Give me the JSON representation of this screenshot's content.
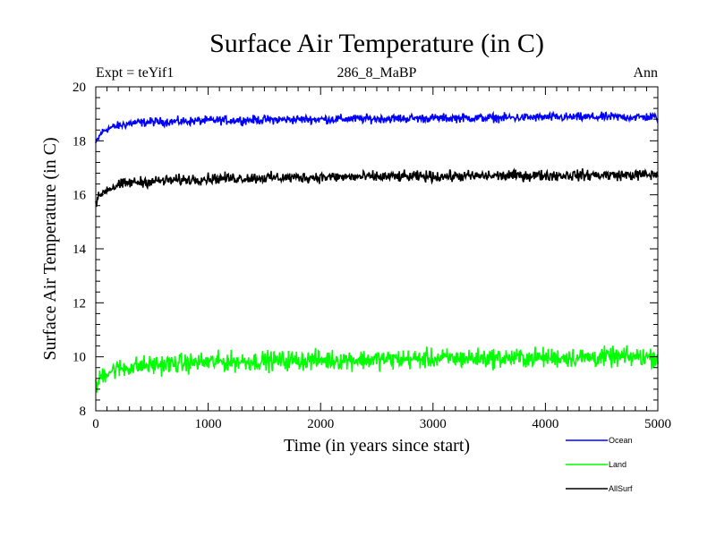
{
  "chart_data": {
    "type": "line",
    "title": "Surface Air Temperature (in C)",
    "subtitle_left": "Expt = teYif1",
    "subtitle_center": "286_8_MaBP",
    "subtitle_right": "Ann",
    "xlabel": "Time (in years since start)",
    "ylabel": "Surface Air Temperature (in C)",
    "xlim": [
      0,
      5000
    ],
    "ylim": [
      8,
      20
    ],
    "xticks": [
      0,
      1000,
      2000,
      3000,
      4000,
      5000
    ],
    "xtick_labels": [
      "0",
      "1000",
      "2000",
      "3000",
      "4000",
      "5000"
    ],
    "yticks": [
      8,
      10,
      12,
      14,
      16,
      18,
      20
    ],
    "ytick_labels": [
      "8",
      "10",
      "12",
      "14",
      "16",
      "18",
      "20"
    ],
    "legend_position": "bottom-right outside",
    "series": [
      {
        "name": "Ocean",
        "color": "#0000ff",
        "x": [
          0,
          50,
          100,
          200,
          300,
          500,
          750,
          1000,
          1500,
          2000,
          2500,
          3000,
          3500,
          4000,
          4500,
          5000
        ],
        "values": [
          17.9,
          18.3,
          18.45,
          18.55,
          18.65,
          18.7,
          18.72,
          18.75,
          18.78,
          18.8,
          18.82,
          18.84,
          18.85,
          18.87,
          18.88,
          18.88
        ],
        "noise": 0.08
      },
      {
        "name": "Land",
        "color": "#00ff00",
        "x": [
          0,
          50,
          100,
          200,
          300,
          500,
          750,
          1000,
          1500,
          2000,
          2500,
          3000,
          3500,
          4000,
          4500,
          5000
        ],
        "values": [
          8.8,
          9.3,
          9.45,
          9.55,
          9.62,
          9.7,
          9.75,
          9.8,
          9.85,
          9.88,
          9.9,
          9.93,
          9.95,
          9.97,
          9.98,
          10.0
        ],
        "noise": 0.18
      },
      {
        "name": "AllSurf",
        "color": "#000000",
        "x": [
          0,
          50,
          100,
          200,
          300,
          500,
          750,
          1000,
          1500,
          2000,
          2500,
          3000,
          3500,
          4000,
          4500,
          5000
        ],
        "values": [
          15.7,
          16.05,
          16.2,
          16.35,
          16.45,
          16.5,
          16.55,
          16.6,
          16.63,
          16.65,
          16.67,
          16.68,
          16.7,
          16.72,
          16.73,
          16.74
        ],
        "noise": 0.1
      }
    ]
  }
}
